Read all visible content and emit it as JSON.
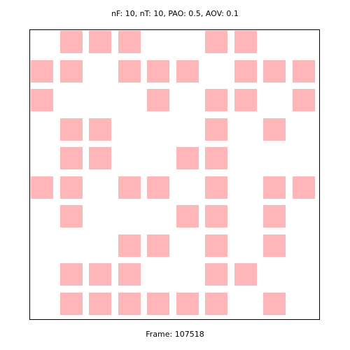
{
  "header": {
    "text": "nF: 10, nT: 10, PAO: 0.5, AOV: 0.1"
  },
  "footer": {
    "text": "Frame: 107518"
  },
  "grid": {
    "rows": 10,
    "cols": 10,
    "active_color": "#ffb6b9",
    "background_color": "#ffffff",
    "border_color": "#000000",
    "cells": [
      [
        0,
        1,
        1,
        1,
        0,
        0,
        1,
        1,
        0,
        0
      ],
      [
        1,
        1,
        0,
        1,
        1,
        1,
        0,
        1,
        1,
        1
      ],
      [
        1,
        0,
        0,
        0,
        1,
        0,
        1,
        1,
        0,
        1
      ],
      [
        0,
        1,
        1,
        0,
        0,
        0,
        1,
        0,
        1,
        0
      ],
      [
        0,
        1,
        1,
        0,
        0,
        1,
        1,
        0,
        0,
        0
      ],
      [
        1,
        1,
        0,
        1,
        1,
        0,
        1,
        0,
        1,
        1
      ],
      [
        0,
        1,
        0,
        0,
        0,
        1,
        1,
        0,
        1,
        0
      ],
      [
        0,
        0,
        0,
        1,
        1,
        0,
        1,
        0,
        1,
        0
      ],
      [
        0,
        1,
        1,
        1,
        0,
        0,
        1,
        1,
        0,
        0
      ],
      [
        0,
        1,
        1,
        1,
        1,
        1,
        1,
        0,
        1,
        0
      ]
    ]
  }
}
